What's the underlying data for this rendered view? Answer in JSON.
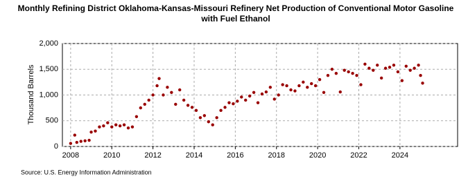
{
  "chart_data": {
    "type": "scatter",
    "title": "Monthly Refining District Oklahoma-Kansas-Missouri Refinery Net Production of Conventional Motor Gasoline with Fuel Ethanol",
    "y_label": "Thousand Barrels",
    "source": "Source: U.S. Energy Information Administration",
    "color": "#990000",
    "grid": true,
    "xlim": [
      2007.6,
      2026.8
    ],
    "xticks": [
      2008,
      2010,
      2012,
      2014,
      2016,
      2018,
      2020,
      2022,
      2024
    ],
    "ylim": [
      0,
      2000
    ],
    "yticks": [
      0,
      500,
      {
        "value": 1000,
        "label": "1,000"
      },
      {
        "value": 1500,
        "label": "1,500"
      },
      {
        "value": 2000,
        "label": "2,000"
      }
    ],
    "x": [
      2008.0,
      2008.2,
      2008.3,
      2008.5,
      2008.7,
      2008.9,
      2009.0,
      2009.2,
      2009.4,
      2009.6,
      2009.8,
      2010.0,
      2010.2,
      2010.4,
      2010.6,
      2010.8,
      2011.0,
      2011.2,
      2011.4,
      2011.6,
      2011.8,
      2012.0,
      2012.2,
      2012.3,
      2012.5,
      2012.7,
      2012.9,
      2013.1,
      2013.3,
      2013.5,
      2013.7,
      2013.9,
      2014.1,
      2014.3,
      2014.5,
      2014.7,
      2014.9,
      2015.1,
      2015.3,
      2015.5,
      2015.7,
      2015.9,
      2016.1,
      2016.3,
      2016.5,
      2016.7,
      2016.9,
      2017.1,
      2017.3,
      2017.5,
      2017.7,
      2017.9,
      2018.1,
      2018.3,
      2018.5,
      2018.7,
      2018.9,
      2019.1,
      2019.3,
      2019.5,
      2019.7,
      2019.9,
      2020.1,
      2020.3,
      2020.5,
      2020.7,
      2020.9,
      2021.1,
      2021.3,
      2021.5,
      2021.7,
      2021.9,
      2022.1,
      2022.3,
      2022.5,
      2022.7,
      2022.9,
      2023.1,
      2023.3,
      2023.5,
      2023.7,
      2023.9,
      2024.1,
      2024.3,
      2024.5,
      2024.7,
      2024.9,
      2025.0,
      2025.1
    ],
    "values": [
      60,
      220,
      80,
      100,
      110,
      120,
      280,
      300,
      380,
      400,
      460,
      380,
      420,
      400,
      420,
      360,
      380,
      580,
      750,
      820,
      900,
      1000,
      1180,
      1320,
      1000,
      1150,
      1050,
      820,
      1100,
      900,
      800,
      760,
      700,
      560,
      600,
      480,
      420,
      560,
      700,
      760,
      850,
      830,
      880,
      960,
      900,
      980,
      1050,
      850,
      1020,
      1060,
      1150,
      920,
      1000,
      1200,
      1180,
      1100,
      1080,
      1180,
      1250,
      1150,
      1220,
      1180,
      1300,
      1050,
      1380,
      1500,
      1420,
      1060,
      1480,
      1450,
      1420,
      1380,
      1200,
      1600,
      1520,
      1480,
      1580,
      1330,
      1520,
      1540,
      1580,
      1450,
      1280,
      1560,
      1480,
      1520,
      1580,
      1380,
      1230
    ]
  }
}
